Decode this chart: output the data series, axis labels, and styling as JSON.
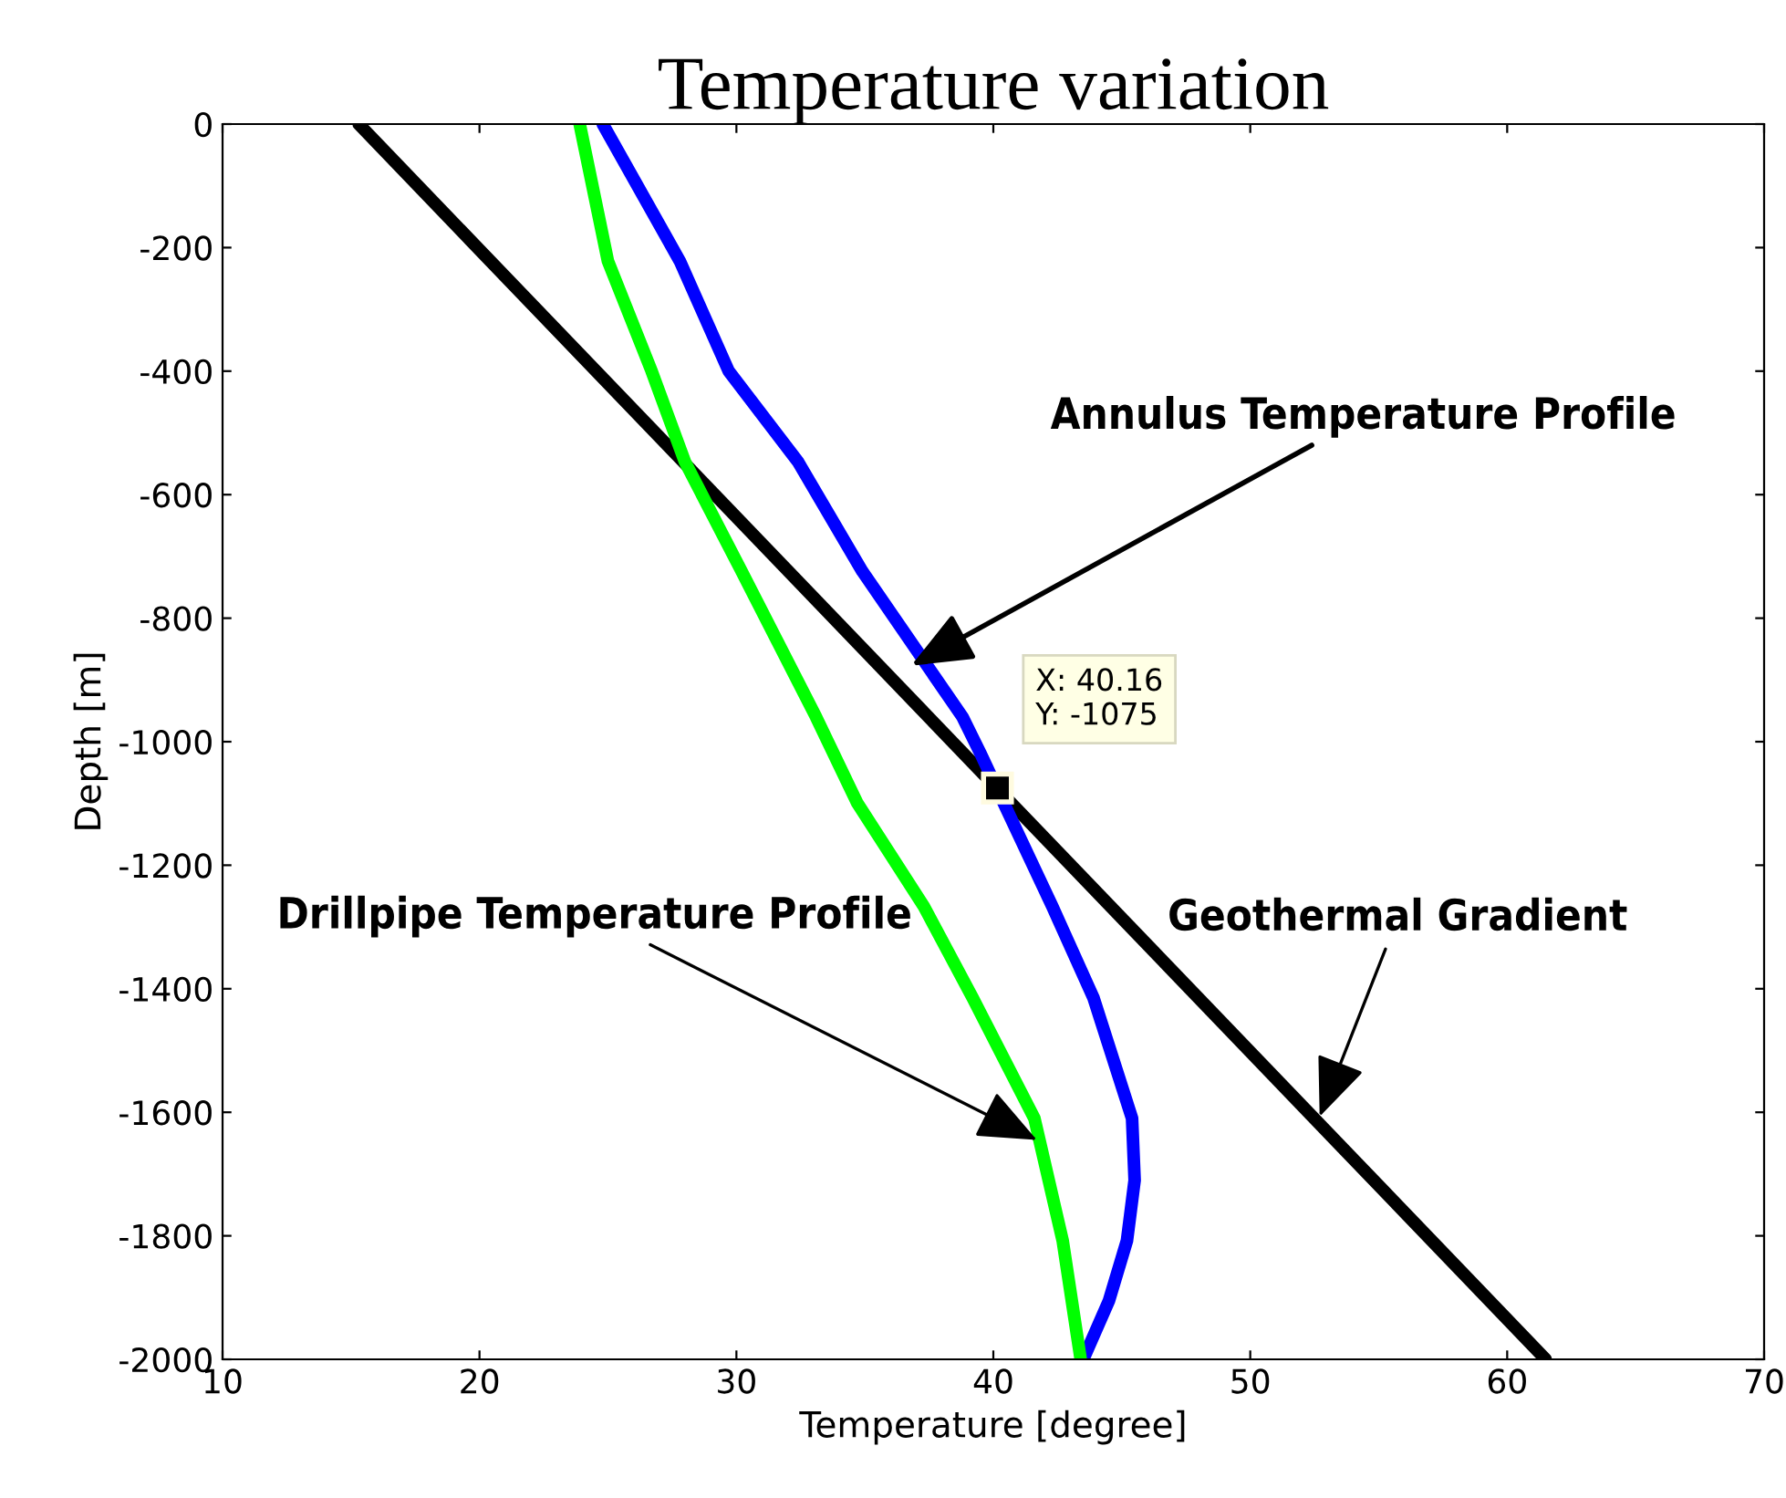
{
  "chart_data": {
    "type": "line",
    "title": "Temperature variation",
    "xlabel": "Temperature [degree]",
    "ylabel": "Depth [m]",
    "xlim": [
      10,
      70
    ],
    "xticks": [
      10,
      20,
      30,
      40,
      50,
      60,
      70
    ],
    "ylim": [
      -2000,
      0
    ],
    "yticks": [
      -2000,
      -1800,
      -1600,
      -1400,
      -1200,
      -1000,
      -800,
      -600,
      -400,
      -200,
      0
    ],
    "grid": false,
    "legend": false,
    "marker": "none",
    "line_style": "solid",
    "series": [
      {
        "color": "#000000",
        "x": [
          15.3,
          61.5
        ],
        "values": [
          0,
          -2000
        ]
      },
      {
        "color": "#0000ff",
        "x": [
          24.8,
          27.8,
          29.7,
          32.4,
          34.9,
          38.8,
          39.5,
          40.4,
          42.3,
          43.9,
          45.4,
          45.5,
          45.2,
          44.5,
          43.5
        ],
        "values": [
          0,
          -222,
          -400,
          -547,
          -724,
          -960,
          -1019,
          -1099,
          -1267,
          -1415,
          -1610,
          -1710,
          -1808,
          -1905,
          -2000
        ]
      },
      {
        "color": "#00ff00",
        "x": [
          23.9,
          25.0,
          26.7,
          28.0,
          30.2,
          33.1,
          34.7,
          37.3,
          39.2,
          41.6,
          42.7,
          43.4
        ],
        "values": [
          0,
          -222,
          -400,
          -547,
          -724,
          -960,
          -1099,
          -1267,
          -1415,
          -1610,
          -1808,
          -2000
        ]
      }
    ],
    "annotations": [
      {
        "text": "Annulus Temperature Profile",
        "x": 36.8,
        "y": -877
      },
      {
        "text": "X: 40.16\nY: -1075",
        "x": 40.16,
        "y": -1075
      },
      {
        "text": "Geothermal Gradient",
        "x": 52.7,
        "y": -1607
      },
      {
        "text": "Drillpipe Temperature Profile",
        "x": 41.7,
        "y": -1645
      }
    ]
  }
}
